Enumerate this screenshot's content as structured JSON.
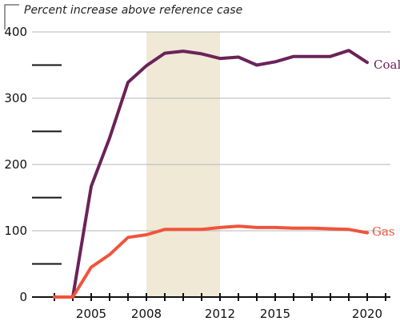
{
  "chart_data": {
    "type": "line",
    "title": "Percent increase above reference case",
    "xlabel": "",
    "ylabel": "",
    "x": [
      2003,
      2004,
      2005,
      2006,
      2007,
      2008,
      2009,
      2010,
      2011,
      2012,
      2013,
      2014,
      2015,
      2016,
      2017,
      2018,
      2019,
      2020
    ],
    "series": [
      {
        "name": "Coal",
        "color": "#6b2358",
        "values": [
          0,
          0,
          167,
          240,
          324,
          349,
          368,
          371,
          367,
          360,
          362,
          350,
          355,
          363,
          363,
          363,
          372,
          354
        ]
      },
      {
        "name": "Gas",
        "color": "#f0543c",
        "values": [
          0,
          0,
          45,
          64,
          90,
          94,
          102,
          102,
          102,
          105,
          107,
          105,
          105,
          104,
          104,
          103,
          102,
          97
        ]
      }
    ],
    "ylim": [
      0,
      400
    ],
    "y_ticks": [
      0,
      100,
      200,
      300,
      400
    ],
    "y_tick_labels": [
      "0",
      "100",
      "200",
      "300",
      "400"
    ],
    "x_tick_labels": [
      {
        "value": 2005,
        "label": "2005"
      },
      {
        "value": 2008,
        "label": "2008"
      },
      {
        "value": 2012,
        "label": "2012"
      },
      {
        "value": 2015,
        "label": "2015"
      },
      {
        "value": 2020,
        "label": "2020"
      }
    ],
    "shaded_band": {
      "from": 2008,
      "to": 2012,
      "color": "#efe9d6"
    },
    "grid": true,
    "gridline_color": "#b5b5b5",
    "legend": "inline labels at right end of lines"
  }
}
